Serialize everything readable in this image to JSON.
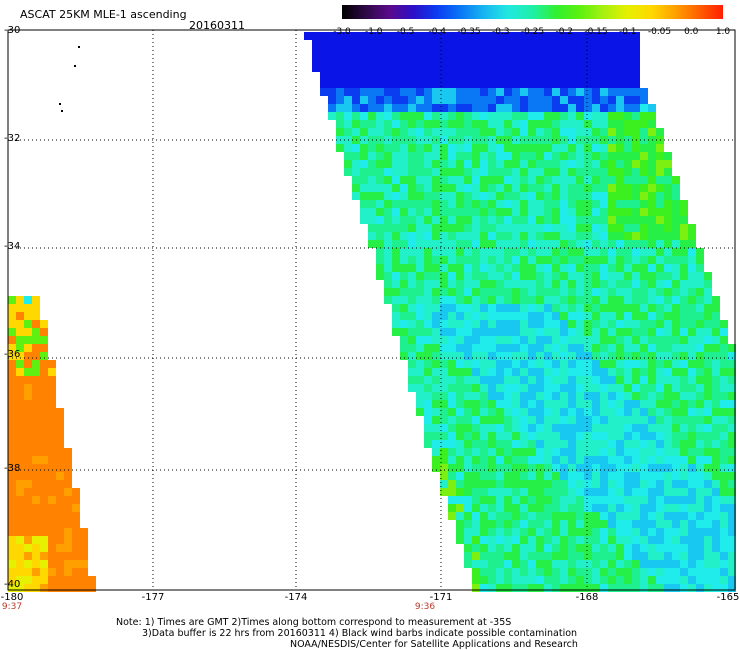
{
  "header": {
    "title": "ASCAT 25KM MLE-1 ascending",
    "date": "20160311"
  },
  "colorbar": {
    "labels": [
      "-3.0",
      "-1.0",
      "-0.5",
      "-0.4",
      "-0.35",
      "-0.3",
      "-0.25",
      "-0.2",
      "-0.15",
      "-0.1",
      "-0.05",
      "0.0",
      "1.0"
    ],
    "colors": [
      "#000000",
      "#2e0845",
      "#5a0a8c",
      "#2b10c8",
      "#0b3cf2",
      "#0a78f5",
      "#18b8f0",
      "#22e8e0",
      "#1ef0a8",
      "#30f030",
      "#5ef010",
      "#a8f010",
      "#e6f000",
      "#ffd800",
      "#ffa000",
      "#ff6000",
      "#ff1e00"
    ]
  },
  "axes": {
    "lat_labels": [
      "-30",
      "-32",
      "-34",
      "-36",
      "-38",
      "-40"
    ],
    "lon_labels": [
      "-180",
      "-177",
      "-174",
      "-171",
      "-168",
      "-165"
    ],
    "time_labels": [
      "9:37",
      "9:36"
    ]
  },
  "notes": {
    "line1": "Note: 1) Times are GMT 2)Times along bottom correspond to measurement at -35S",
    "line2": "3)Data buffer is 22 hrs from 20160311 4) Black wind barbs indicate possible contamination",
    "line3": "NOAA/NESDIS/Center for Satellite Applications and Research"
  }
}
